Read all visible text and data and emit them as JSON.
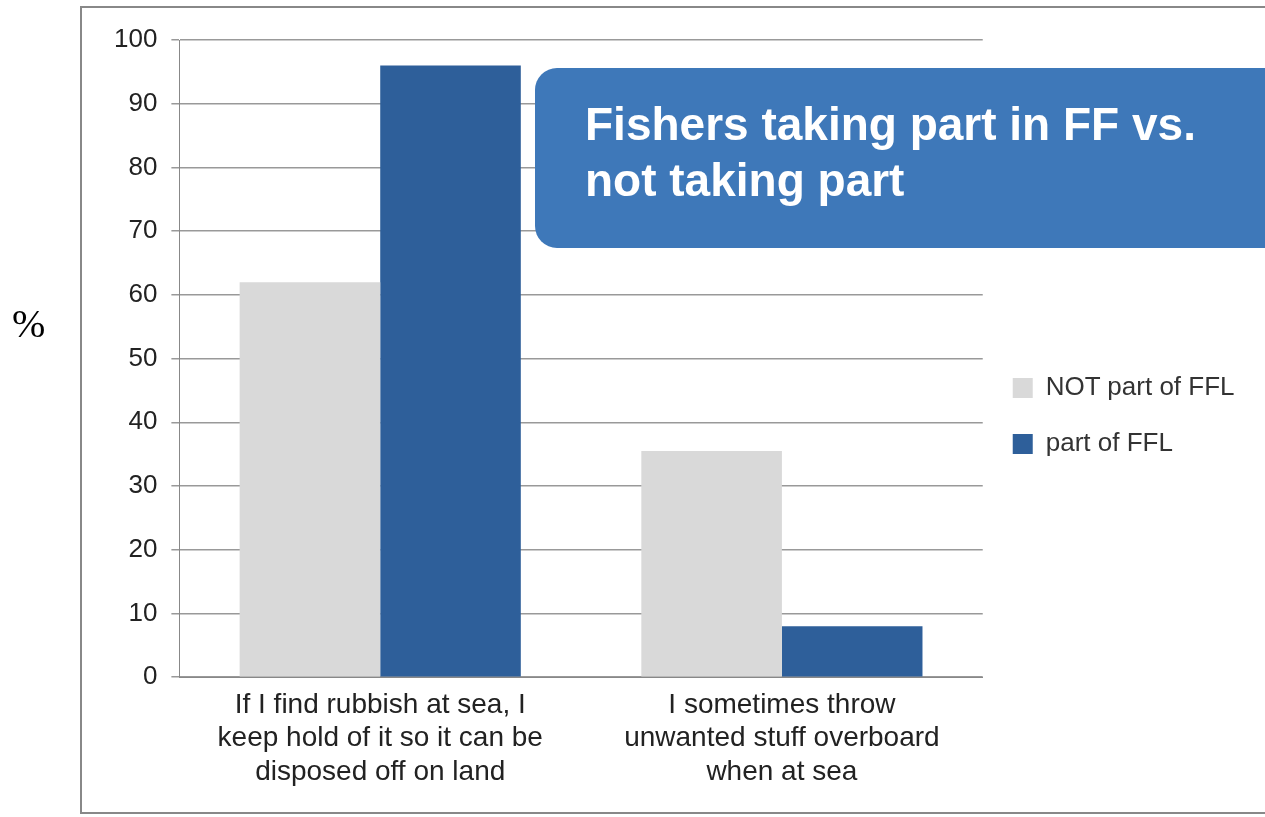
{
  "chart_data": {
    "type": "bar",
    "title": "Fishers taking part in FF vs. not taking part",
    "ylabel": "%",
    "categories": [
      "If I find rubbish at sea, I keep hold of it so it can be disposed off on land",
      "I sometimes throw unwanted stuff overboard when at sea"
    ],
    "series": [
      {
        "name": "NOT part of FFL",
        "color": "#d9d9d9",
        "values": [
          62,
          35.5
        ]
      },
      {
        "name": "part of FFL",
        "color": "#2e5f9a",
        "values": [
          96,
          8
        ]
      }
    ],
    "ylim": [
      0,
      100
    ],
    "yticks": [
      0,
      10,
      20,
      30,
      40,
      50,
      60,
      70,
      80,
      90,
      100
    ],
    "grid": "y",
    "legend": "right"
  }
}
